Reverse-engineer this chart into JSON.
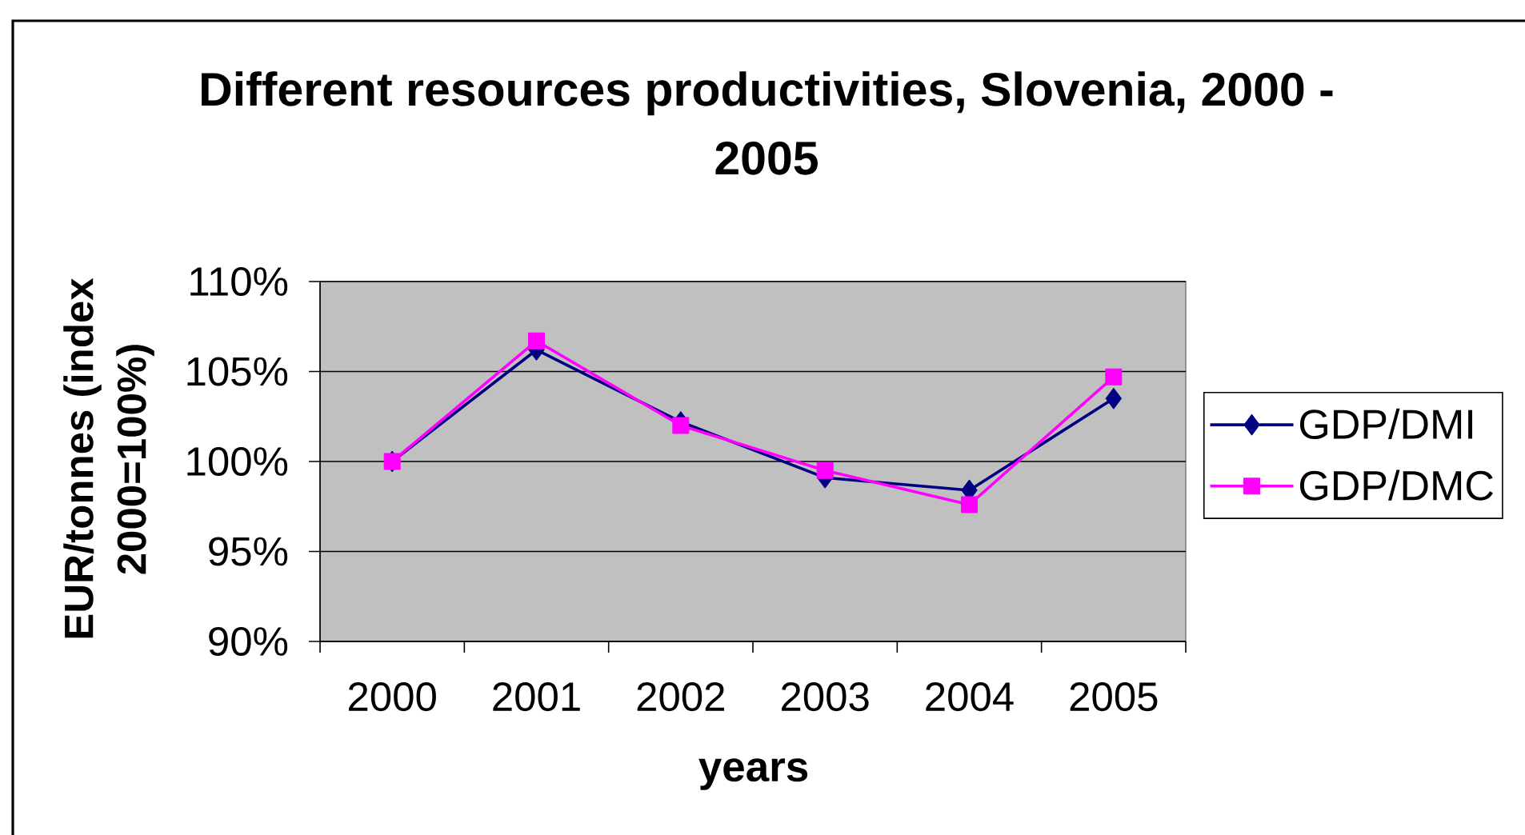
{
  "chart_data": {
    "type": "line",
    "title": "Different resources productivities, Slovenia, 2000 - 2005",
    "xlabel": "years",
    "ylabel": "EUR/tonnes (index 2000=100%)",
    "categories": [
      "2000",
      "2001",
      "2002",
      "2003",
      "2004",
      "2005"
    ],
    "series": [
      {
        "name": "GDP/DMI",
        "color": "#000080",
        "marker": "diamond",
        "values": [
          100,
          106.2,
          102.2,
          99.1,
          98.4,
          103.5
        ]
      },
      {
        "name": "GDP/DMC",
        "color": "#ff00ff",
        "marker": "square",
        "values": [
          100,
          106.7,
          102.0,
          99.5,
          97.6,
          104.7
        ]
      }
    ],
    "ylim": [
      90,
      110
    ],
    "yticks": [
      {
        "value": 90,
        "label": "90%"
      },
      {
        "value": 95,
        "label": "95%"
      },
      {
        "value": 100,
        "label": "100%"
      },
      {
        "value": 105,
        "label": "105%"
      },
      {
        "value": 110,
        "label": "110%"
      }
    ],
    "grid": "y",
    "legend": "right"
  }
}
